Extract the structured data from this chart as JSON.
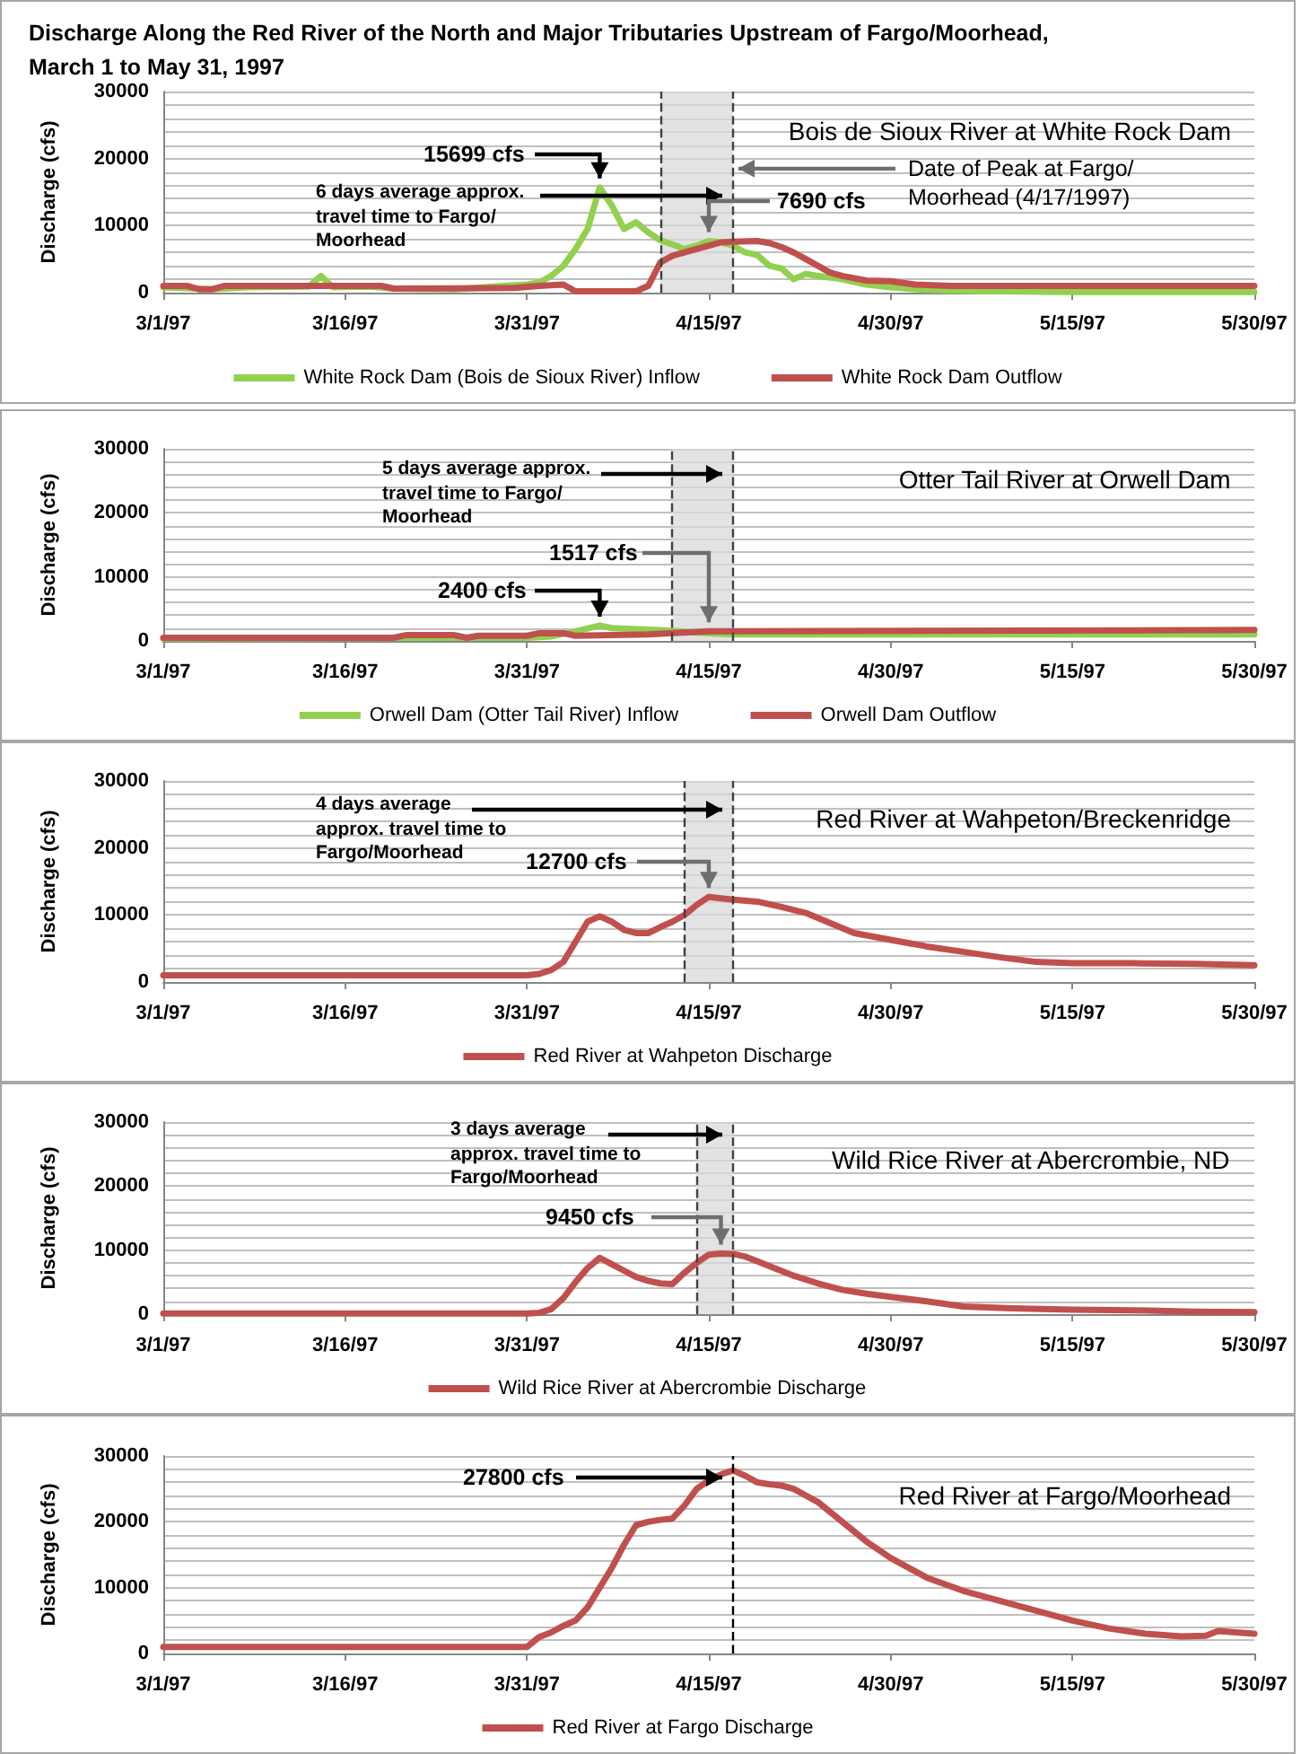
{
  "chart_data": [
    {
      "type": "line",
      "title": "Discharge Along the Red River of the North and Major Tributaries Upstream of Fargo/Moorhead, March 1 to May 31, 1997",
      "subtitle": "Bois de Sioux River at White Rock Dam",
      "ylabel": "Discharge (cfs)",
      "legend": "bottom",
      "grid": "y",
      "xlim": [
        "1997-03-01",
        "1997-05-30"
      ],
      "xticks": [
        {
          "value": "1997-03-01",
          "label": "3/1/97"
        },
        {
          "value": "1997-03-16",
          "label": "3/16/97"
        },
        {
          "value": "1997-03-31",
          "label": "3/31/97"
        },
        {
          "value": "1997-04-15",
          "label": "4/15/97"
        },
        {
          "value": "1997-04-30",
          "label": "4/30/97"
        },
        {
          "value": "1997-05-15",
          "label": "5/15/97"
        },
        {
          "value": "1997-05-30",
          "label": "5/30/97"
        }
      ],
      "ylim": [
        0,
        30000
      ],
      "yticks": [
        0,
        {
          "value": 2000,
          "label": null
        },
        {
          "value": 4000,
          "label": null
        },
        {
          "value": 6000,
          "label": null
        },
        {
          "value": 8000,
          "label": null
        },
        10000,
        {
          "value": 12000,
          "label": null
        },
        {
          "value": 14000,
          "label": null
        },
        {
          "value": 16000,
          "label": null
        },
        {
          "value": 18000,
          "label": null
        },
        20000,
        {
          "value": 22000,
          "label": null
        },
        {
          "value": 24000,
          "label": null
        },
        {
          "value": 26000,
          "label": null
        },
        {
          "value": 28000,
          "label": null
        },
        30000
      ],
      "series": [
        {
          "name": "White Rock Dam (Bois de Sioux River) Inflow",
          "color": "#92d050",
          "x": [
            "1997-03-01",
            "1997-03-05",
            "1997-03-08",
            "1997-03-13",
            "1997-03-14",
            "1997-03-15",
            "1997-03-18",
            "1997-03-20",
            "1997-03-25",
            "1997-03-29",
            "1997-03-31",
            "1997-04-01",
            "1997-04-02",
            "1997-04-03",
            "1997-04-04",
            "1997-04-05",
            "1997-04-06",
            "1997-04-07",
            "1997-04-08",
            "1997-04-09",
            "1997-04-10",
            "1997-04-11",
            "1997-04-12",
            "1997-04-13",
            "1997-04-14",
            "1997-04-15",
            "1997-04-16",
            "1997-04-17",
            "1997-04-18",
            "1997-04-19",
            "1997-04-20",
            "1997-04-21",
            "1997-04-22",
            "1997-04-23",
            "1997-04-24",
            "1997-04-26",
            "1997-04-28",
            "1997-04-30",
            "1997-05-03",
            "1997-05-08",
            "1997-05-15",
            "1997-05-22",
            "1997-05-30"
          ],
          "values": [
            800,
            500,
            800,
            900,
            2500,
            800,
            900,
            600,
            500,
            1000,
            1200,
            1500,
            2500,
            4000,
            6500,
            9500,
            15699,
            13000,
            9500,
            10500,
            9000,
            7800,
            7200,
            6500,
            7000,
            7690,
            7500,
            7000,
            6000,
            5600,
            4000,
            3600,
            2000,
            2800,
            2500,
            2000,
            1200,
            800,
            400,
            200,
            100,
            100,
            100
          ]
        },
        {
          "name": "White Rock Dam Outflow",
          "color": "#c0504d",
          "x": [
            "1997-03-01",
            "1997-03-03",
            "1997-03-04",
            "1997-03-05",
            "1997-03-06",
            "1997-03-19",
            "1997-03-20",
            "1997-03-30",
            "1997-04-01",
            "1997-04-03",
            "1997-04-04",
            "1997-04-09",
            "1997-04-10",
            "1997-04-11",
            "1997-04-12",
            "1997-04-13",
            "1997-04-14",
            "1997-04-15",
            "1997-04-16",
            "1997-04-17",
            "1997-04-19",
            "1997-04-20",
            "1997-04-21",
            "1997-04-22",
            "1997-04-23",
            "1997-04-24",
            "1997-04-25",
            "1997-04-26",
            "1997-04-28",
            "1997-04-30",
            "1997-05-02",
            "1997-05-05",
            "1997-05-30"
          ],
          "values": [
            1000,
            1000,
            500,
            500,
            1000,
            1000,
            600,
            700,
            1000,
            1200,
            200,
            200,
            1000,
            4500,
            5500,
            6000,
            6500,
            7000,
            7500,
            7600,
            7700,
            7400,
            6800,
            6000,
            5000,
            4000,
            3000,
            2500,
            1800,
            1700,
            1200,
            1000,
            1000
          ]
        }
      ],
      "ref_lines": [
        {
          "axis": "x",
          "value": "1997-04-11",
          "line_style": "dashed",
          "color": "#404040"
        },
        {
          "axis": "x",
          "value": "1997-04-17",
          "line_style": "dashed",
          "color": "#404040"
        }
      ],
      "bands": [
        {
          "axis": "x",
          "from": "1997-04-11",
          "to": "1997-04-17",
          "color": "#d9d9d9"
        }
      ],
      "annotations": [
        {
          "text": "15699 cfs",
          "x": "1997-04-06",
          "y": 15699
        },
        "6 days average approx. travel time to Fargo/ Moorhead",
        {
          "text": "7690 cfs",
          "x": "1997-04-15",
          "y": 7690
        },
        {
          "text": "Date of Peak at Fargo/ Moorhead (4/17/1997)",
          "x": "1997-04-17",
          "y": 18500
        }
      ]
    },
    {
      "type": "line",
      "title": "Otter Tail River at Orwell Dam",
      "ylabel": "Discharge (cfs)",
      "legend": "bottom",
      "grid": "y",
      "xlim": [
        "1997-03-01",
        "1997-05-30"
      ],
      "xticks": [
        {
          "value": "1997-03-01",
          "label": "3/1/97"
        },
        {
          "value": "1997-03-16",
          "label": "3/16/97"
        },
        {
          "value": "1997-03-31",
          "label": "3/31/97"
        },
        {
          "value": "1997-04-15",
          "label": "4/15/97"
        },
        {
          "value": "1997-04-30",
          "label": "4/30/97"
        },
        {
          "value": "1997-05-15",
          "label": "5/15/97"
        },
        {
          "value": "1997-05-30",
          "label": "5/30/97"
        }
      ],
      "ylim": [
        0,
        30000
      ],
      "yticks": [
        0,
        {
          "value": 2000,
          "label": null
        },
        {
          "value": 4000,
          "label": null
        },
        {
          "value": 6000,
          "label": null
        },
        {
          "value": 8000,
          "label": null
        },
        10000,
        {
          "value": 12000,
          "label": null
        },
        {
          "value": 14000,
          "label": null
        },
        {
          "value": 16000,
          "label": null
        },
        {
          "value": 18000,
          "label": null
        },
        20000,
        {
          "value": 22000,
          "label": null
        },
        {
          "value": 24000,
          "label": null
        },
        {
          "value": 26000,
          "label": null
        },
        {
          "value": 28000,
          "label": null
        },
        30000
      ],
      "series": [
        {
          "name": "Orwell Dam (Otter Tail River) Inflow",
          "color": "#92d050",
          "x": [
            "1997-03-01",
            "1997-03-31",
            "1997-04-02",
            "1997-04-04",
            "1997-04-06",
            "1997-04-07",
            "1997-04-11",
            "1997-04-14",
            "1997-04-17",
            "1997-05-30"
          ],
          "values": [
            400,
            500,
            700,
            1500,
            2400,
            2000,
            1700,
            1300,
            1000,
            1000
          ]
        },
        {
          "name": "Orwell Dam Outflow",
          "color": "#c0504d",
          "x": [
            "1997-03-01",
            "1997-03-20",
            "1997-03-21",
            "1997-03-25",
            "1997-03-26",
            "1997-03-27",
            "1997-03-31",
            "1997-04-01",
            "1997-04-03",
            "1997-04-04",
            "1997-04-10",
            "1997-04-15",
            "1997-04-17",
            "1997-05-30"
          ],
          "values": [
            500,
            500,
            900,
            900,
            500,
            800,
            800,
            1200,
            1200,
            800,
            1000,
            1517,
            1500,
            1700
          ]
        }
      ],
      "ref_lines": [
        {
          "axis": "x",
          "value": "1997-04-12",
          "line_style": "dashed",
          "color": "#404040"
        },
        {
          "axis": "x",
          "value": "1997-04-17",
          "line_style": "dashed",
          "color": "#404040"
        }
      ],
      "bands": [
        {
          "axis": "x",
          "from": "1997-04-12",
          "to": "1997-04-17",
          "color": "#d9d9d9"
        }
      ],
      "annotations": [
        "5 days average approx. travel time to Fargo/ Moorhead",
        {
          "text": "1517 cfs",
          "x": "1997-04-15",
          "y": 1517
        },
        {
          "text": "2400 cfs",
          "x": "1997-04-06",
          "y": 2400
        }
      ]
    },
    {
      "type": "line",
      "title": "Red River at Wahpeton/Breckenridge",
      "ylabel": "Discharge (cfs)",
      "legend": "bottom",
      "grid": "y",
      "xlim": [
        "1997-03-01",
        "1997-05-30"
      ],
      "xticks": [
        {
          "value": "1997-03-01",
          "label": "3/1/97"
        },
        {
          "value": "1997-03-16",
          "label": "3/16/97"
        },
        {
          "value": "1997-03-31",
          "label": "3/31/97"
        },
        {
          "value": "1997-04-15",
          "label": "4/15/97"
        },
        {
          "value": "1997-04-30",
          "label": "4/30/97"
        },
        {
          "value": "1997-05-15",
          "label": "5/15/97"
        },
        {
          "value": "1997-05-30",
          "label": "5/30/97"
        }
      ],
      "ylim": [
        0,
        30000
      ],
      "yticks": [
        0,
        {
          "value": 2000,
          "label": null
        },
        {
          "value": 4000,
          "label": null
        },
        {
          "value": 6000,
          "label": null
        },
        {
          "value": 8000,
          "label": null
        },
        10000,
        {
          "value": 12000,
          "label": null
        },
        {
          "value": 14000,
          "label": null
        },
        {
          "value": 16000,
          "label": null
        },
        {
          "value": 18000,
          "label": null
        },
        20000,
        {
          "value": 22000,
          "label": null
        },
        {
          "value": 24000,
          "label": null
        },
        {
          "value": 26000,
          "label": null
        },
        {
          "value": 28000,
          "label": null
        },
        30000
      ],
      "series": [
        {
          "name": "Red River at Wahpeton Discharge",
          "color": "#c0504d",
          "x": [
            "1997-03-01",
            "1997-03-31",
            "1997-04-01",
            "1997-04-02",
            "1997-04-03",
            "1997-04-04",
            "1997-04-05",
            "1997-04-06",
            "1997-04-07",
            "1997-04-08",
            "1997-04-09",
            "1997-04-10",
            "1997-04-11",
            "1997-04-12",
            "1997-04-13",
            "1997-04-14",
            "1997-04-15",
            "1997-04-16",
            "1997-04-17",
            "1997-04-19",
            "1997-04-21",
            "1997-04-23",
            "1997-04-25",
            "1997-04-27",
            "1997-04-30",
            "1997-05-03",
            "1997-05-06",
            "1997-05-09",
            "1997-05-12",
            "1997-05-15",
            "1997-05-20",
            "1997-05-25",
            "1997-05-30"
          ],
          "values": [
            1000,
            1000,
            1200,
            1800,
            3000,
            6000,
            9000,
            9800,
            9000,
            7800,
            7300,
            7300,
            8200,
            9000,
            10000,
            11500,
            12700,
            12500,
            12300,
            12000,
            11200,
            10300,
            8800,
            7300,
            6300,
            5300,
            4500,
            3700,
            3000,
            2800,
            2800,
            2700,
            2500
          ]
        }
      ],
      "ref_lines": [
        {
          "axis": "x",
          "value": "1997-04-13",
          "line_style": "dashed",
          "color": "#404040"
        },
        {
          "axis": "x",
          "value": "1997-04-17",
          "line_style": "dashed",
          "color": "#404040"
        }
      ],
      "bands": [
        {
          "axis": "x",
          "from": "1997-04-13",
          "to": "1997-04-17",
          "color": "#d9d9d9"
        }
      ],
      "annotations": [
        "4 days average approx. travel time to Fargo/Moorhead",
        {
          "text": "12700 cfs",
          "x": "1997-04-15",
          "y": 12700
        }
      ]
    },
    {
      "type": "line",
      "title": "Wild Rice River at Abercrombie, ND",
      "ylabel": "Discharge (cfs)",
      "legend": "bottom",
      "grid": "y",
      "xlim": [
        "1997-03-01",
        "1997-05-30"
      ],
      "xticks": [
        {
          "value": "1997-03-01",
          "label": "3/1/97"
        },
        {
          "value": "1997-03-16",
          "label": "3/16/97"
        },
        {
          "value": "1997-03-31",
          "label": "3/31/97"
        },
        {
          "value": "1997-04-15",
          "label": "4/15/97"
        },
        {
          "value": "1997-04-30",
          "label": "4/30/97"
        },
        {
          "value": "1997-05-15",
          "label": "5/15/97"
        },
        {
          "value": "1997-05-30",
          "label": "5/30/97"
        }
      ],
      "ylim": [
        0,
        30000
      ],
      "yticks": [
        0,
        {
          "value": 2000,
          "label": null
        },
        {
          "value": 4000,
          "label": null
        },
        {
          "value": 6000,
          "label": null
        },
        {
          "value": 8000,
          "label": null
        },
        10000,
        {
          "value": 12000,
          "label": null
        },
        {
          "value": 14000,
          "label": null
        },
        {
          "value": 16000,
          "label": null
        },
        {
          "value": 18000,
          "label": null
        },
        20000,
        {
          "value": 22000,
          "label": null
        },
        {
          "value": 24000,
          "label": null
        },
        {
          "value": 26000,
          "label": null
        },
        {
          "value": 28000,
          "label": null
        },
        30000
      ],
      "series": [
        {
          "name": "Wild Rice River at Abercrombie Discharge",
          "color": "#c0504d",
          "x": [
            "1997-03-01",
            "1997-03-31",
            "1997-04-01",
            "1997-04-02",
            "1997-04-03",
            "1997-04-04",
            "1997-04-05",
            "1997-04-06",
            "1997-04-07",
            "1997-04-08",
            "1997-04-09",
            "1997-04-10",
            "1997-04-11",
            "1997-04-12",
            "1997-04-13",
            "1997-04-14",
            "1997-04-15",
            "1997-04-16",
            "1997-04-17",
            "1997-04-18",
            "1997-04-20",
            "1997-04-22",
            "1997-04-24",
            "1997-04-26",
            "1997-04-28",
            "1997-04-30",
            "1997-05-03",
            "1997-05-06",
            "1997-05-10",
            "1997-05-15",
            "1997-05-20",
            "1997-05-25",
            "1997-05-30"
          ],
          "values": [
            100,
            100,
            200,
            800,
            2500,
            5000,
            7200,
            8800,
            7800,
            6800,
            5800,
            5200,
            4800,
            4700,
            6500,
            8000,
            9300,
            9450,
            9400,
            9000,
            7500,
            6000,
            4800,
            3800,
            3200,
            2700,
            2000,
            1200,
            900,
            700,
            600,
            400,
            300
          ]
        }
      ],
      "ref_lines": [
        {
          "axis": "x",
          "value": "1997-04-14",
          "line_style": "dashed",
          "color": "#404040"
        },
        {
          "axis": "x",
          "value": "1997-04-17",
          "line_style": "dashed",
          "color": "#404040"
        }
      ],
      "bands": [
        {
          "axis": "x",
          "from": "1997-04-14",
          "to": "1997-04-17",
          "color": "#d9d9d9"
        }
      ],
      "annotations": [
        "3 days average approx. travel time to Fargo/Moorhead",
        {
          "text": "9450 cfs",
          "x": "1997-04-16",
          "y": 9450
        }
      ]
    },
    {
      "type": "line",
      "title": "Red River at Fargo/Moorhead",
      "ylabel": "Discharge (cfs)",
      "legend": "bottom",
      "grid": "y",
      "xlim": [
        "1997-03-01",
        "1997-05-30"
      ],
      "xticks": [
        {
          "value": "1997-03-01",
          "label": "3/1/97"
        },
        {
          "value": "1997-03-16",
          "label": "3/16/97"
        },
        {
          "value": "1997-03-31",
          "label": "3/31/97"
        },
        {
          "value": "1997-04-15",
          "label": "4/15/97"
        },
        {
          "value": "1997-04-30",
          "label": "4/30/97"
        },
        {
          "value": "1997-05-15",
          "label": "5/15/97"
        },
        {
          "value": "1997-05-30",
          "label": "5/30/97"
        }
      ],
      "ylim": [
        0,
        30000
      ],
      "yticks": [
        0,
        {
          "value": 2000,
          "label": null
        },
        {
          "value": 4000,
          "label": null
        },
        {
          "value": 6000,
          "label": null
        },
        {
          "value": 8000,
          "label": null
        },
        10000,
        {
          "value": 12000,
          "label": null
        },
        {
          "value": 14000,
          "label": null
        },
        {
          "value": 16000,
          "label": null
        },
        {
          "value": 18000,
          "label": null
        },
        20000,
        {
          "value": 22000,
          "label": null
        },
        {
          "value": 24000,
          "label": null
        },
        {
          "value": 26000,
          "label": null
        },
        {
          "value": 28000,
          "label": null
        },
        30000
      ],
      "series": [
        {
          "name": "Red River at Fargo Discharge",
          "color": "#c0504d",
          "x": [
            "1997-03-01",
            "1997-03-31",
            "1997-04-01",
            "1997-04-02",
            "1997-04-03",
            "1997-04-04",
            "1997-04-05",
            "1997-04-06",
            "1997-04-07",
            "1997-04-08",
            "1997-04-09",
            "1997-04-10",
            "1997-04-11",
            "1997-04-12",
            "1997-04-13",
            "1997-04-14",
            "1997-04-15",
            "1997-04-16",
            "1997-04-17",
            "1997-04-18",
            "1997-04-19",
            "1997-04-20",
            "1997-04-21",
            "1997-04-22",
            "1997-04-23",
            "1997-04-24",
            "1997-04-26",
            "1997-04-28",
            "1997-04-30",
            "1997-05-03",
            "1997-05-06",
            "1997-05-09",
            "1997-05-12",
            "1997-05-15",
            "1997-05-18",
            "1997-05-21",
            "1997-05-24",
            "1997-05-26",
            "1997-05-27",
            "1997-05-30"
          ],
          "values": [
            1000,
            1000,
            2500,
            3200,
            4200,
            5000,
            7000,
            10000,
            13000,
            16500,
            19500,
            20000,
            20300,
            20500,
            22500,
            25000,
            26300,
            27200,
            27800,
            27000,
            26000,
            25700,
            25500,
            25000,
            24000,
            23000,
            20000,
            17000,
            14500,
            11500,
            9500,
            8000,
            6500,
            5000,
            3800,
            3000,
            2600,
            2700,
            3400,
            3000
          ]
        }
      ],
      "ref_lines": [
        {
          "axis": "x",
          "value": "1997-04-17",
          "line_style": "dashed",
          "color": "#000000"
        }
      ],
      "annotations": [
        {
          "text": "27800 cfs",
          "x": "1997-04-17",
          "y": 27800
        }
      ]
    }
  ]
}
